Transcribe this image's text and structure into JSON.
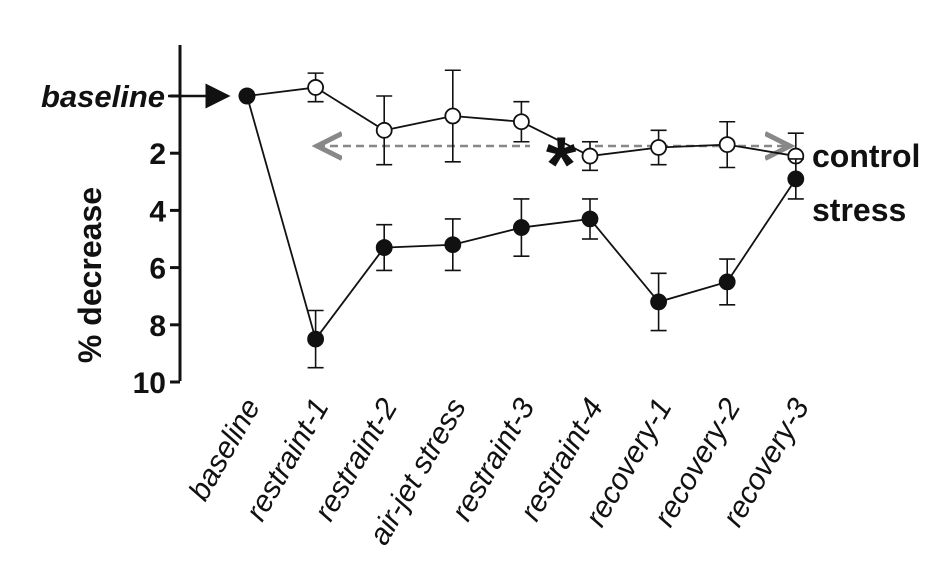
{
  "chart_data": {
    "type": "line",
    "ylabel": "% decrease",
    "y_axis_inverted": true,
    "ylim": [
      0,
      10
    ],
    "yticks": [
      2,
      4,
      6,
      8,
      10
    ],
    "baseline_label": "baseline",
    "categories": [
      "baseline",
      "restraint-1",
      "restraint-2",
      "air-jet stress",
      "restraint-3",
      "restraint-4",
      "recovery-1",
      "recovery-2",
      "recovery-3"
    ],
    "series": [
      {
        "name": "control",
        "marker": "open-circle",
        "color": "#111111",
        "values": [
          0,
          -0.3,
          1.2,
          0.7,
          0.9,
          2.1,
          1.8,
          1.7,
          2.1
        ],
        "errors": [
          0,
          0.5,
          1.2,
          1.6,
          0.7,
          0.5,
          0.6,
          0.8,
          0.8
        ]
      },
      {
        "name": "stress",
        "marker": "filled-circle",
        "color": "#111111",
        "values": [
          0,
          8.5,
          5.3,
          5.2,
          4.6,
          4.3,
          7.2,
          6.5,
          2.9
        ],
        "errors": [
          0,
          1.0,
          0.8,
          0.9,
          1.0,
          0.7,
          1.0,
          0.8,
          0.7
        ]
      }
    ],
    "annotations": [
      {
        "text": "*",
        "meaning": "significant difference between control and stress",
        "span": [
          "restraint-1",
          "recovery-3"
        ],
        "color": "#888888"
      }
    ]
  }
}
